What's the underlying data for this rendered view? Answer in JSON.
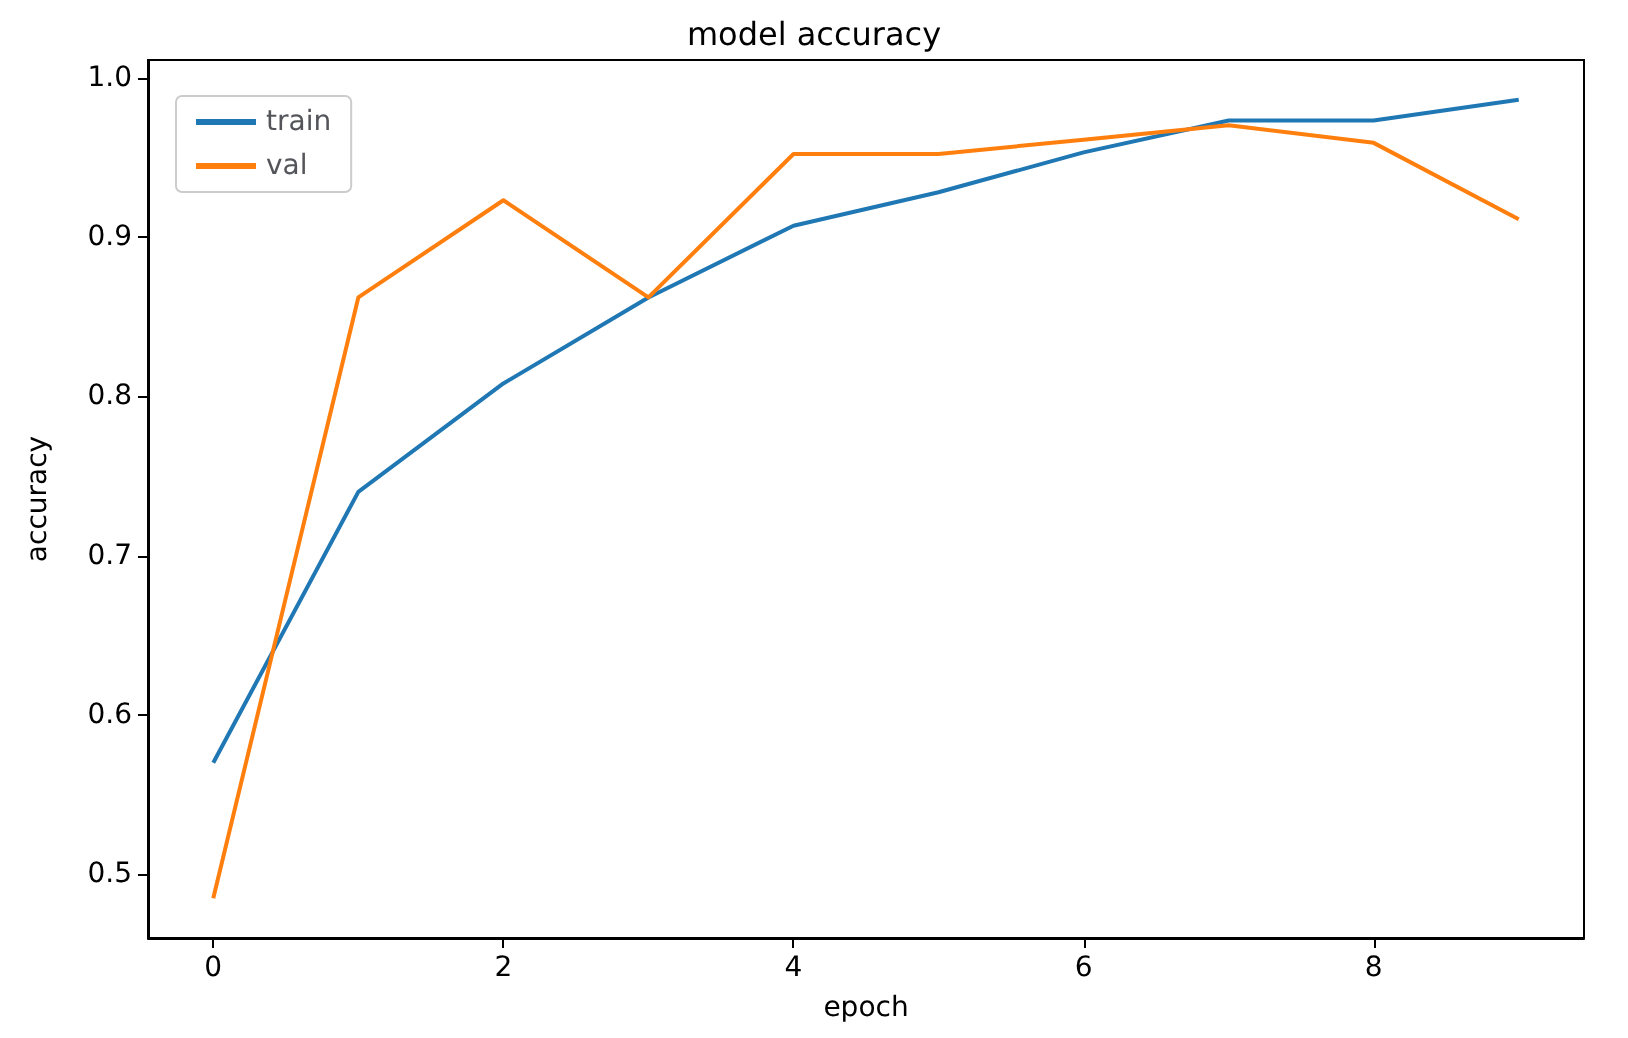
{
  "chart_data": {
    "type": "line",
    "title": "model accuracy",
    "xlabel": "epoch",
    "ylabel": "accuracy",
    "x": [
      0,
      1,
      2,
      3,
      4,
      5,
      6,
      7,
      8,
      9
    ],
    "series": [
      {
        "name": "train",
        "color": "#1f77b4",
        "values": [
          0.57,
          0.74,
          0.808,
          0.862,
          0.907,
          0.928,
          0.953,
          0.973,
          0.973,
          0.986
        ]
      },
      {
        "name": "val",
        "color": "#ff7f0e",
        "values": [
          0.485,
          0.862,
          0.923,
          0.862,
          0.952,
          0.952,
          0.961,
          0.97,
          0.959,
          0.911
        ]
      }
    ],
    "xlim": [
      -0.45,
      9.45
    ],
    "xticks": [
      0,
      2,
      4,
      6,
      8
    ],
    "ylim": [
      0.46,
      1.011
    ],
    "yticks": [
      {
        "value": 0.5,
        "label": "0.5"
      },
      {
        "value": 0.6,
        "label": "0.6"
      },
      {
        "value": 0.7,
        "label": "0.7"
      },
      {
        "value": 0.8,
        "label": "0.8"
      },
      {
        "value": 0.9,
        "label": "0.9"
      },
      {
        "value": 1.0,
        "label": "1.0"
      }
    ],
    "legend": "top left",
    "marker": "none",
    "line_style": "solid",
    "grid": false
  }
}
